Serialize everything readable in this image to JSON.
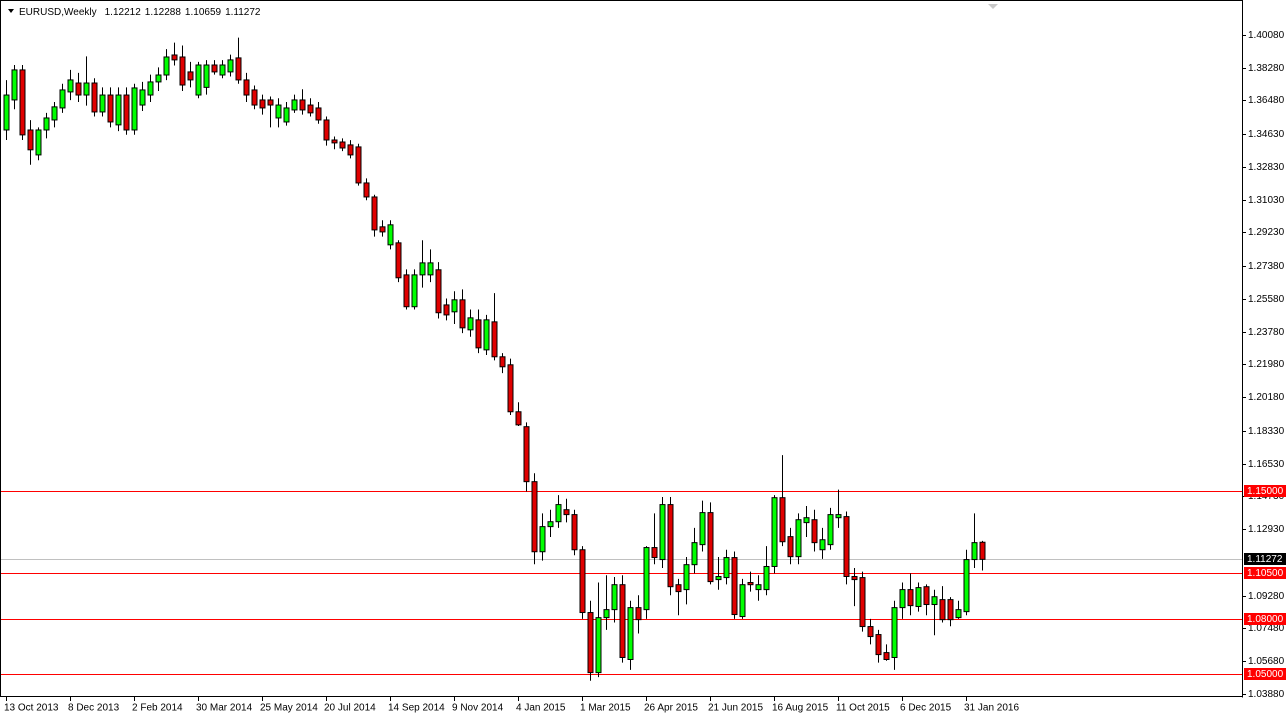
{
  "chart_data": {
    "type": "candlestick",
    "title": "EURUSD,Weekly",
    "categories": [
      "13 Oct 2013",
      null,
      null,
      null,
      null,
      null,
      null,
      null,
      "8 Dec 2013",
      null,
      null,
      null,
      null,
      null,
      null,
      null,
      "2 Feb 2014",
      null,
      null,
      null,
      null,
      null,
      null,
      null,
      "30 Mar 2014",
      null,
      null,
      null,
      null,
      null,
      null,
      null,
      "25 May 2014",
      null,
      null,
      null,
      null,
      null,
      null,
      null,
      "20 Jul 2014",
      null,
      null,
      null,
      null,
      null,
      null,
      null,
      "14 Sep 2014",
      null,
      null,
      null,
      null,
      null,
      null,
      null,
      "9 Nov 2014",
      null,
      null,
      null,
      null,
      null,
      null,
      null,
      "4 Jan 2015",
      null,
      null,
      null,
      null,
      null,
      null,
      null,
      "1 Mar 2015",
      null,
      null,
      null,
      null,
      null,
      null,
      null,
      "26 Apr 2015",
      null,
      null,
      null,
      null,
      null,
      null,
      null,
      "21 Jun 2015",
      null,
      null,
      null,
      null,
      null,
      null,
      null,
      "16 Aug 2015",
      null,
      null,
      null,
      null,
      null,
      null,
      null,
      "11 Oct 2015",
      null,
      null,
      null,
      null,
      null,
      null,
      null,
      "6 Dec 2015",
      null,
      null,
      null,
      null,
      null,
      null,
      null,
      "31 Jan 2016",
      null,
      null
    ],
    "open": [
      1.3486,
      1.3651,
      1.3816,
      1.3486,
      1.3349,
      1.3486,
      1.3541,
      1.3607,
      1.3695,
      1.3744,
      1.3678,
      1.3744,
      1.3585,
      1.3678,
      1.3514,
      1.3678,
      1.3486,
      1.3623,
      1.3678,
      1.375,
      1.3788,
      1.3898,
      1.3887,
      1.3805,
      1.3678,
      1.372,
      1.3843,
      1.3788,
      1.3805,
      1.3882,
      1.3761,
      1.3706,
      1.3651,
      1.3651,
      1.3552,
      1.353,
      1.3596,
      1.3651,
      1.3623,
      1.3607,
      1.3541,
      1.3431,
      1.342,
      1.3404,
      1.3393,
      1.3195,
      1.3118,
      1.2954,
      1.2855,
      1.2866,
      1.269,
      1.2515,
      1.269,
      1.269,
      1.2718,
      1.2525,
      1.2487,
      1.2553,
      1.2388,
      1.2443,
      1.2278,
      1.2432,
      1.224,
      1.2196,
      1.1938,
      1.1856,
      1.1554,
      1.1169,
      1.1307,
      1.1334,
      1.14,
      1.1373,
      1.118,
      1.0835,
      1.0505,
      1.0807,
      1.0851,
      1.0988,
      1.0577,
      1.0862,
      1.0851,
      1.1192,
      1.1126,
      1.1428,
      1.0988,
      1.0961,
      1.1098,
      1.1208,
      1.1384,
      1.1016,
      1.1027,
      1.1137,
      1.0813,
      1.1,
      1.0961,
      1.0961,
      1.1088,
      1.1466,
      1.1252,
      1.1142,
      1.1329,
      1.1345,
      1.118,
      1.1208,
      1.1356,
      1.1362,
      1.1033,
      1.1027,
      1.0758,
      1.0714,
      1.0615,
      1.0588,
      1.0862,
      1.0961,
      1.0868,
      1.0977,
      1.0879,
      1.0906,
      1.0906,
      1.0807,
      1.084,
      1.1126,
      1.12212
    ],
    "high": [
      1.376,
      1.3843,
      1.3843,
      1.354,
      1.35,
      1.358,
      1.364,
      1.374,
      1.3816,
      1.38,
      1.389,
      1.377,
      1.372,
      1.372,
      1.372,
      1.372,
      1.374,
      1.375,
      1.379,
      1.383,
      1.393,
      1.3966,
      1.395,
      1.386,
      1.386,
      1.387,
      1.387,
      1.387,
      1.39,
      1.3993,
      1.38,
      1.373,
      1.368,
      1.367,
      1.366,
      1.364,
      1.368,
      1.371,
      1.366,
      1.364,
      1.356,
      1.345,
      1.344,
      1.343,
      1.341,
      1.322,
      1.313,
      1.299,
      1.299,
      1.288,
      1.272,
      1.272,
      1.288,
      1.283,
      1.276,
      1.256,
      1.26,
      1.261,
      1.25,
      1.25,
      1.247,
      1.259,
      1.226,
      1.223,
      1.199,
      1.188,
      1.16,
      1.138,
      1.14,
      1.148,
      1.146,
      1.14,
      1.12,
      1.09,
      1.1,
      1.104,
      1.103,
      1.104,
      1.09,
      1.093,
      1.12,
      1.138,
      1.147,
      1.147,
      1.102,
      1.114,
      1.13,
      1.145,
      1.144,
      1.114,
      1.118,
      1.117,
      1.102,
      1.106,
      1.104,
      1.12,
      1.148,
      1.17,
      1.13,
      1.138,
      1.142,
      1.14,
      1.13,
      1.141,
      1.151,
      1.139,
      1.108,
      1.106,
      1.08,
      1.074,
      1.066,
      1.09,
      1.1,
      1.105,
      1.1,
      1.099,
      1.096,
      1.098,
      1.092,
      1.09,
      1.118,
      1.138,
      1.12288
    ],
    "low": [
      1.3431,
      1.36,
      1.3431,
      1.3295,
      1.332,
      1.344,
      1.35,
      1.358,
      1.365,
      1.364,
      1.362,
      1.356,
      1.356,
      1.35,
      1.348,
      1.346,
      1.346,
      1.359,
      1.364,
      1.37,
      1.376,
      1.384,
      1.37,
      1.372,
      1.366,
      1.368,
      1.379,
      1.377,
      1.378,
      1.374,
      1.364,
      1.36,
      1.357,
      1.35,
      1.35,
      1.351,
      1.358,
      1.357,
      1.356,
      1.352,
      1.34,
      1.338,
      1.337,
      1.333,
      1.318,
      1.31,
      1.29,
      1.29,
      1.283,
      1.265,
      1.25,
      1.25,
      1.262,
      1.265,
      1.245,
      1.244,
      1.242,
      1.237,
      1.235,
      1.226,
      1.225,
      1.222,
      1.215,
      1.192,
      1.186,
      1.15,
      1.11,
      1.112,
      1.125,
      1.13,
      1.133,
      1.115,
      1.08,
      1.046,
      1.048,
      1.074,
      1.078,
      1.056,
      1.052,
      1.072,
      1.08,
      1.11,
      1.108,
      1.093,
      1.082,
      1.088,
      1.105,
      1.117,
      1.099,
      1.096,
      1.099,
      1.08,
      1.08,
      1.095,
      1.09,
      1.093,
      1.105,
      1.12,
      1.11,
      1.11,
      1.125,
      1.117,
      1.113,
      1.118,
      1.13,
      1.099,
      1.087,
      1.073,
      1.066,
      1.056,
      1.057,
      1.052,
      1.08,
      1.082,
      1.084,
      1.082,
      1.071,
      1.078,
      1.076,
      1.08,
      1.082,
      1.108,
      1.10659
    ],
    "close": [
      1.3678,
      1.3816,
      1.3459,
      1.3377,
      1.3486,
      1.3552,
      1.3613,
      1.3706,
      1.3761,
      1.3678,
      1.3744,
      1.3585,
      1.3678,
      1.353,
      1.3678,
      1.3486,
      1.3717,
      1.3706,
      1.375,
      1.3788,
      1.3887,
      1.3871,
      1.3733,
      1.3761,
      1.3843,
      1.3843,
      1.3805,
      1.3843,
      1.3871,
      1.3761,
      1.3678,
      1.3623,
      1.3607,
      1.3623,
      1.3623,
      1.3607,
      1.3651,
      1.3596,
      1.358,
      1.3541,
      1.3431,
      1.3415,
      1.3387,
      1.3349,
      1.3195,
      1.3118,
      1.2937,
      1.2926,
      1.2965,
      1.2674,
      1.2515,
      1.269,
      1.2756,
      1.2756,
      1.2482,
      1.247,
      1.2553,
      1.2399,
      1.2454,
      1.2289,
      1.2443,
      1.224,
      1.2185,
      1.1938,
      1.1866,
      1.1554,
      1.1169,
      1.1307,
      1.1334,
      1.1428,
      1.1373,
      1.118,
      1.0835,
      1.0505,
      1.0807,
      1.0851,
      1.0988,
      1.0588,
      1.0862,
      1.0796,
      1.1192,
      1.1137,
      1.1428,
      1.0977,
      1.095,
      1.1098,
      1.1219,
      1.1384,
      1.1005,
      1.1033,
      1.1137,
      1.0824,
      1.0988,
      1.0988,
      1.0988,
      1.1088,
      1.1466,
      1.1224,
      1.1142,
      1.1345,
      1.1356,
      1.1219,
      1.1235,
      1.1373,
      1.1373,
      1.1033,
      1.1016,
      1.0758,
      1.0703,
      1.0604,
      1.0577,
      1.0862,
      1.0961,
      1.0873,
      1.0972,
      1.0879,
      1.0922,
      1.0796,
      1.0796,
      1.0851,
      1.1126,
      1.1219,
      1.11272
    ],
    "up_color": "#00ff00",
    "down_color": "#e00000",
    "outline_color": "#000000",
    "ylim": [
      1.0371,
      1.42
    ],
    "yticks": [
      {
        "value": 1.4008,
        "label": "1.40080"
      },
      {
        "value": 1.3828,
        "label": "1.38280"
      },
      {
        "value": 1.3648,
        "label": "1.36480"
      },
      {
        "value": 1.3463,
        "label": "1.34630"
      },
      {
        "value": 1.3283,
        "label": "1.32830"
      },
      {
        "value": 1.3103,
        "label": "1.31030"
      },
      {
        "value": 1.2923,
        "label": "1.29230"
      },
      {
        "value": 1.2738,
        "label": "1.27380"
      },
      {
        "value": 1.2558,
        "label": "1.25580"
      },
      {
        "value": 1.2378,
        "label": "1.23780"
      },
      {
        "value": 1.2198,
        "label": "1.21980"
      },
      {
        "value": 1.2018,
        "label": "1.20180"
      },
      {
        "value": 1.1833,
        "label": "1.18330"
      },
      {
        "value": 1.1653,
        "label": "1.16530"
      },
      {
        "value": 1.1473,
        "label": "1.14730"
      },
      {
        "value": 1.1293,
        "label": "1.12930"
      },
      {
        "value": 1.0928,
        "label": "1.09280"
      },
      {
        "value": 1.0748,
        "label": "1.07480"
      },
      {
        "value": 1.0568,
        "label": "1.05680"
      },
      {
        "value": 1.0388,
        "label": "1.03880"
      }
    ],
    "hlines": [
      {
        "value": 1.15,
        "label": "1.15000"
      },
      {
        "value": 1.105,
        "label": "1.10500"
      },
      {
        "value": 1.08,
        "label": "1.08000"
      },
      {
        "value": 1.05,
        "label": "1.05000"
      }
    ],
    "hline_color": "#ff0000",
    "price_line_color": "#c0c0c0"
  }
}
